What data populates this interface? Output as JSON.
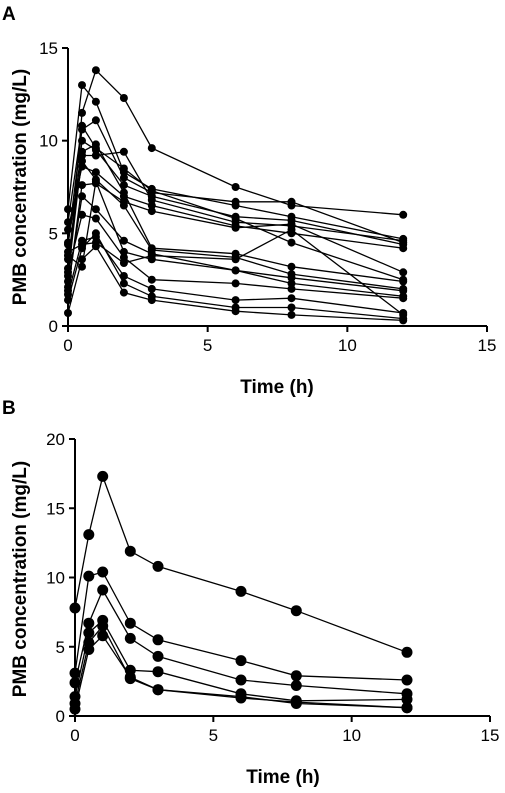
{
  "chart_data": [
    {
      "type": "line",
      "panel_label": "A",
      "xlabel": "Time (h)",
      "ylabel": "PMB concentration (mg/L)",
      "xlim": [
        0,
        15
      ],
      "ylim": [
        0,
        15
      ],
      "xticks": [
        0,
        5,
        10,
        15
      ],
      "yticks": [
        0,
        5,
        10,
        15
      ],
      "grid": false,
      "legend": "none",
      "marker": "filled-circle",
      "color": "#000000",
      "x": [
        0,
        0.5,
        1,
        2,
        3,
        6,
        8,
        12
      ],
      "series": [
        {
          "values": [
            2.4,
            11.5,
            13.8,
            12.3,
            9.6,
            7.5,
            6.5,
            6.0
          ]
        },
        {
          "values": [
            6.3,
            13.0,
            12.1,
            8.3,
            7.4,
            6.5,
            5.9,
            4.7
          ]
        },
        {
          "values": [
            4.5,
            10.6,
            11.1,
            8.0,
            7.2,
            6.7,
            6.7,
            4.5
          ]
        },
        {
          "values": [
            3.1,
            10.0,
            9.5,
            7.6,
            7.0,
            5.9,
            5.7,
            4.4
          ]
        },
        {
          "values": [
            2.7,
            9.2,
            9.2,
            9.4,
            6.8,
            5.6,
            5.4,
            4.6
          ]
        },
        {
          "values": [
            5.2,
            8.6,
            8.3,
            7.0,
            6.5,
            5.4,
            5.0,
            4.2
          ]
        },
        {
          "values": [
            1.9,
            7.6,
            7.7,
            6.7,
            6.2,
            5.3,
            5.5,
            2.9
          ]
        },
        {
          "values": [
            4.4,
            9.4,
            9.8,
            7.2,
            4.2,
            3.9,
            3.2,
            2.4
          ]
        },
        {
          "values": [
            3.6,
            8.9,
            7.9,
            6.5,
            4.1,
            3.7,
            2.8,
            2.0
          ]
        },
        {
          "values": [
            2.1,
            7.0,
            6.3,
            4.6,
            3.9,
            3.0,
            2.3,
            1.6
          ]
        },
        {
          "values": [
            2.9,
            6.0,
            5.8,
            3.7,
            2.5,
            2.3,
            2.0,
            1.5
          ]
        },
        {
          "values": [
            1.7,
            4.6,
            4.8,
            2.7,
            2.0,
            1.4,
            1.5,
            0.7
          ]
        },
        {
          "values": [
            1.4,
            4.2,
            5.0,
            2.3,
            1.6,
            1.0,
            1.0,
            0.4
          ]
        },
        {
          "values": [
            0.7,
            3.6,
            4.3,
            1.8,
            1.4,
            0.8,
            0.6,
            0.3
          ]
        },
        {
          "values": [
            4.0,
            4.4,
            4.5,
            3.4,
            3.8,
            3.6,
            5.2,
            0.6
          ]
        },
        {
          "values": [
            3.8,
            3.2,
            7.8,
            4.0,
            3.6,
            3.0,
            2.6,
            1.9
          ]
        },
        {
          "values": [
            5.6,
            10.8,
            9.6,
            8.5,
            7.3,
            5.8,
            4.5,
            2.5
          ]
        }
      ]
    },
    {
      "type": "line",
      "panel_label": "B",
      "xlabel": "Time (h)",
      "ylabel": "PMB concentration (mg/L)",
      "xlim": [
        0,
        15
      ],
      "ylim": [
        0,
        20
      ],
      "xticks": [
        0,
        5,
        10,
        15
      ],
      "yticks": [
        0,
        5,
        10,
        15,
        20
      ],
      "grid": false,
      "legend": "none",
      "marker": "filled-circle",
      "color": "#000000",
      "x": [
        0,
        0.5,
        1,
        2,
        3,
        6,
        8,
        12
      ],
      "series": [
        {
          "values": [
            7.8,
            13.1,
            17.3,
            11.9,
            10.8,
            9.0,
            7.6,
            4.6
          ]
        },
        {
          "values": [
            3.1,
            10.1,
            10.4,
            6.7,
            5.5,
            4.0,
            2.9,
            2.6
          ]
        },
        {
          "values": [
            2.4,
            6.7,
            9.1,
            5.6,
            4.3,
            2.6,
            2.2,
            1.6
          ]
        },
        {
          "values": [
            1.4,
            6.0,
            6.9,
            3.3,
            3.2,
            1.6,
            1.1,
            1.2
          ]
        },
        {
          "values": [
            0.9,
            5.3,
            6.5,
            2.7,
            1.9,
            1.4,
            0.9,
            0.6
          ]
        },
        {
          "values": [
            0.5,
            4.8,
            5.8,
            2.8,
            1.9,
            1.3,
            1.0,
            0.6
          ]
        }
      ]
    }
  ]
}
